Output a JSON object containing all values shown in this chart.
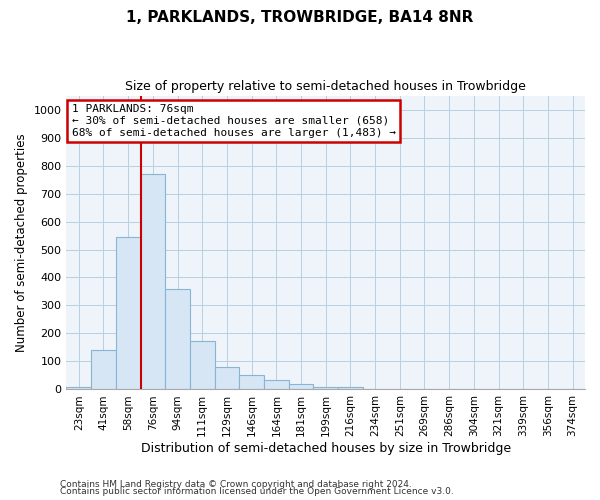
{
  "title": "1, PARKLANDS, TROWBRIDGE, BA14 8NR",
  "subtitle": "Size of property relative to semi-detached houses in Trowbridge",
  "xlabel": "Distribution of semi-detached houses by size in Trowbridge",
  "ylabel": "Number of semi-detached properties",
  "footer1": "Contains HM Land Registry data © Crown copyright and database right 2024.",
  "footer2": "Contains public sector information licensed under the Open Government Licence v3.0.",
  "bar_color": "#d6e6f5",
  "bar_edge_color": "#8ab4d4",
  "grid_color": "#b8cfe0",
  "bg_color": "#eef4fa",
  "vline_color": "#cc0000",
  "annotation_line1": "1 PARKLANDS: 76sqm",
  "annotation_line2": "← 30% of semi-detached houses are smaller (658)",
  "annotation_line3": "68% of semi-detached houses are larger (1,483) →",
  "annotation_box_color": "#cc0000",
  "bins": [
    "23sqm",
    "41sqm",
    "58sqm",
    "76sqm",
    "94sqm",
    "111sqm",
    "129sqm",
    "146sqm",
    "164sqm",
    "181sqm",
    "199sqm",
    "216sqm",
    "234sqm",
    "251sqm",
    "269sqm",
    "286sqm",
    "304sqm",
    "321sqm",
    "339sqm",
    "356sqm",
    "374sqm"
  ],
  "values": [
    8,
    140,
    545,
    770,
    358,
    172,
    82,
    52,
    35,
    20,
    10,
    7,
    2,
    0,
    0,
    0,
    0,
    0,
    0,
    0,
    0
  ],
  "vline_x": 3.0,
  "ylim": [
    0,
    1050
  ],
  "yticks": [
    0,
    100,
    200,
    300,
    400,
    500,
    600,
    700,
    800,
    900,
    1000
  ]
}
